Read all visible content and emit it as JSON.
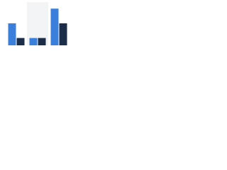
{
  "chart_data": {
    "type": "bar",
    "categories": [
      null,
      null,
      null
    ],
    "series": [
      {
        "color": "#3a7fdc",
        "values": [
          3,
          1,
          5
        ]
      },
      {
        "color": "#1b2d48",
        "values": [
          1,
          1,
          3
        ]
      }
    ],
    "ylim": [
      0,
      5.5
    ]
  }
}
